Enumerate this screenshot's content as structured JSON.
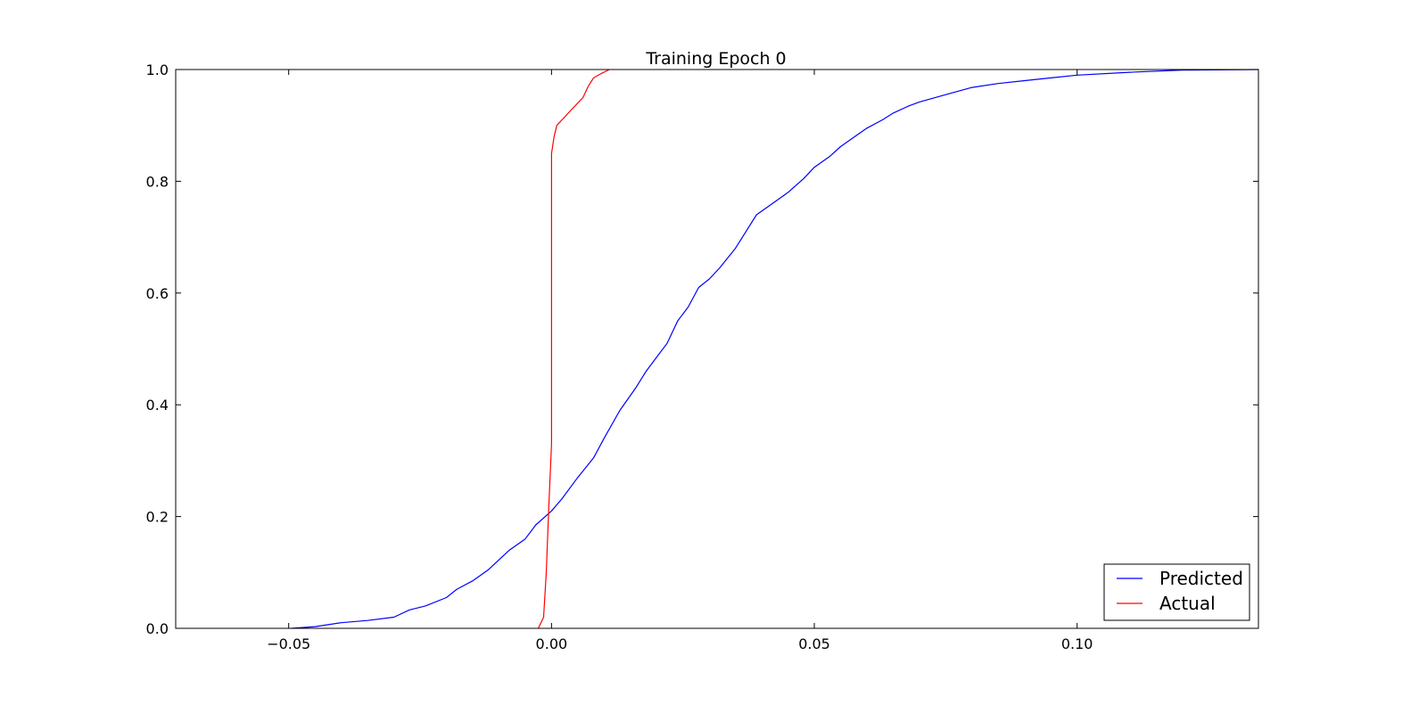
{
  "chart_data": {
    "type": "line",
    "title": "Training Epoch 0",
    "xlabel": "",
    "ylabel": "",
    "xlim": [
      -0.0715,
      0.1345
    ],
    "ylim": [
      0.0,
      1.0
    ],
    "x_ticks": [
      -0.05,
      0.0,
      0.05,
      0.1
    ],
    "x_tick_labels": [
      "−0.05",
      "0.00",
      "0.05",
      "0.10"
    ],
    "y_ticks": [
      0.0,
      0.2,
      0.4,
      0.6,
      0.8,
      1.0
    ],
    "y_tick_labels": [
      "0.0",
      "0.2",
      "0.4",
      "0.6",
      "0.8",
      "1.0"
    ],
    "grid": false,
    "legend_position": "lower-right",
    "series": [
      {
        "name": "Predicted",
        "color": "#0000ff",
        "points": [
          [
            -0.0495,
            0.0
          ],
          [
            -0.045,
            0.003
          ],
          [
            -0.04,
            0.01
          ],
          [
            -0.035,
            0.014
          ],
          [
            -0.03,
            0.02
          ],
          [
            -0.027,
            0.033
          ],
          [
            -0.024,
            0.04
          ],
          [
            -0.02,
            0.055
          ],
          [
            -0.018,
            0.07
          ],
          [
            -0.015,
            0.085
          ],
          [
            -0.012,
            0.105
          ],
          [
            -0.008,
            0.14
          ],
          [
            -0.005,
            0.16
          ],
          [
            -0.003,
            0.185
          ],
          [
            0.0,
            0.21
          ],
          [
            0.002,
            0.232
          ],
          [
            0.005,
            0.27
          ],
          [
            0.008,
            0.305
          ],
          [
            0.01,
            0.34
          ],
          [
            0.013,
            0.39
          ],
          [
            0.016,
            0.43
          ],
          [
            0.018,
            0.46
          ],
          [
            0.02,
            0.485
          ],
          [
            0.022,
            0.51
          ],
          [
            0.024,
            0.55
          ],
          [
            0.026,
            0.575
          ],
          [
            0.028,
            0.61
          ],
          [
            0.03,
            0.625
          ],
          [
            0.032,
            0.645
          ],
          [
            0.035,
            0.68
          ],
          [
            0.037,
            0.71
          ],
          [
            0.039,
            0.74
          ],
          [
            0.042,
            0.76
          ],
          [
            0.045,
            0.78
          ],
          [
            0.048,
            0.805
          ],
          [
            0.05,
            0.825
          ],
          [
            0.053,
            0.845
          ],
          [
            0.055,
            0.862
          ],
          [
            0.058,
            0.882
          ],
          [
            0.06,
            0.895
          ],
          [
            0.063,
            0.91
          ],
          [
            0.065,
            0.922
          ],
          [
            0.068,
            0.935
          ],
          [
            0.07,
            0.942
          ],
          [
            0.075,
            0.955
          ],
          [
            0.08,
            0.968
          ],
          [
            0.085,
            0.975
          ],
          [
            0.09,
            0.98
          ],
          [
            0.095,
            0.985
          ],
          [
            0.1,
            0.99
          ],
          [
            0.11,
            0.995
          ],
          [
            0.12,
            0.999
          ],
          [
            0.1345,
            1.0
          ]
        ]
      },
      {
        "name": "Actual",
        "color": "#ff0000",
        "points": [
          [
            -0.0025,
            0.0
          ],
          [
            -0.0015,
            0.02
          ],
          [
            -0.001,
            0.1
          ],
          [
            -0.0005,
            0.22
          ],
          [
            0.0,
            0.33
          ],
          [
            0.0,
            0.85
          ],
          [
            0.0005,
            0.88
          ],
          [
            0.001,
            0.9
          ],
          [
            0.002,
            0.91
          ],
          [
            0.004,
            0.93
          ],
          [
            0.006,
            0.95
          ],
          [
            0.007,
            0.97
          ],
          [
            0.008,
            0.985
          ],
          [
            0.0095,
            0.993
          ],
          [
            0.011,
            1.0
          ]
        ]
      }
    ]
  }
}
